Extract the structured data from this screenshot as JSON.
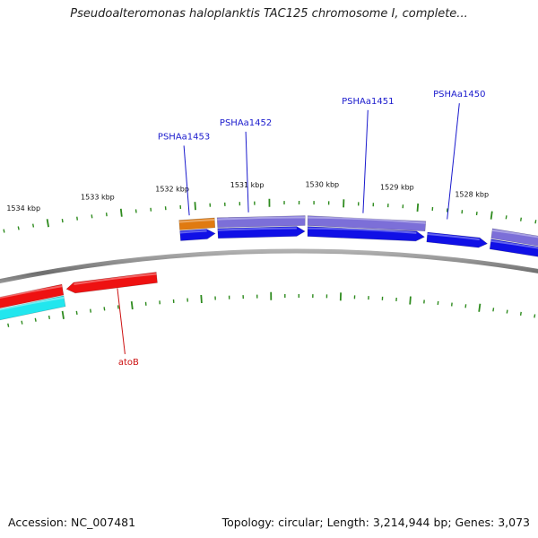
{
  "title": "Pseudoalteromonas haloplanktis TAC125 chromosome I, complete...",
  "footer": {
    "accession": "Accession: NC_007481",
    "summary": "Topology: circular; Length: 3,214,944 bp; Genes: 3,073"
  },
  "colors": {
    "backbone": "#8a8a8a",
    "tick": "#2e8b1e",
    "gene_label_forward": "#1a1acd",
    "gene_label_reverse": "#cc1111",
    "cds_forward": "#1010e6",
    "gene_forward": "#7c6fd8",
    "gene_forward_alt": "#e07a10",
    "gene_reverse": "#ee1111",
    "cds_reverse": "#22e6ee"
  },
  "scale_labels": [
    "1534 kbp",
    "1533 kbp",
    "1532 kbp",
    "1531 kbp",
    "1530 kbp",
    "1529 kbp",
    "1528 kbp"
  ],
  "gene_labels": [
    {
      "text": "PSHAa1453",
      "strand": "forward"
    },
    {
      "text": "PSHAa1452",
      "strand": "forward"
    },
    {
      "text": "PSHAa1451",
      "strand": "forward"
    },
    {
      "text": "PSHAa1450",
      "strand": "forward"
    },
    {
      "text": "atoB",
      "strand": "reverse"
    }
  ]
}
